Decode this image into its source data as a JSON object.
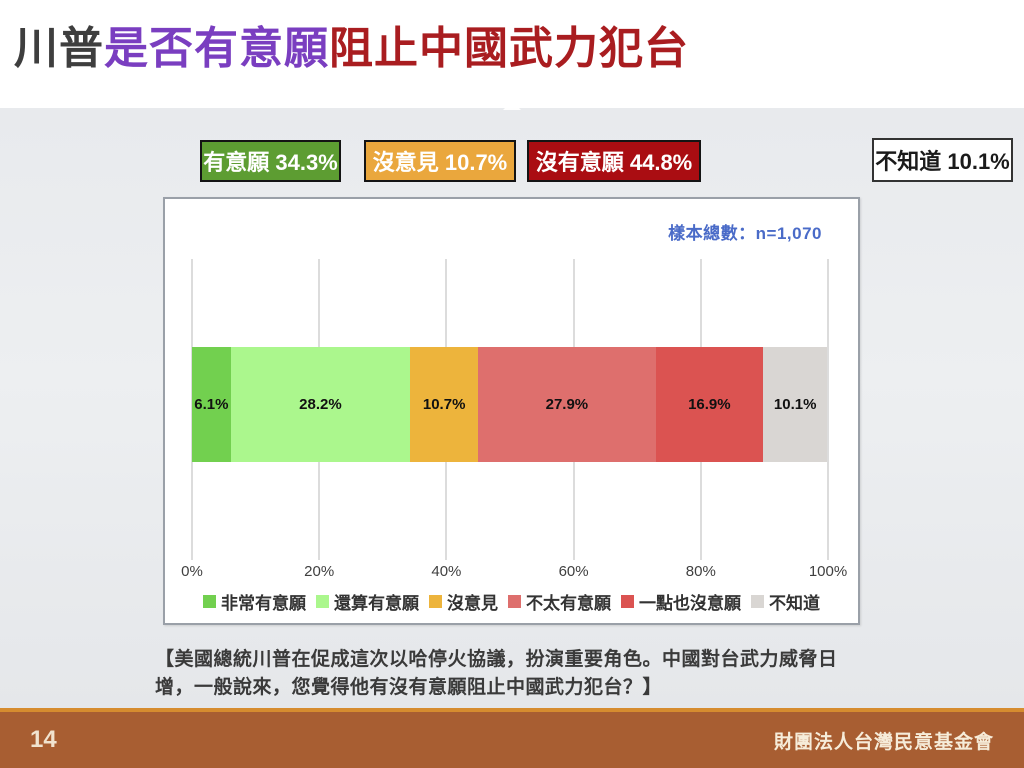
{
  "title": {
    "part1": "川普",
    "part2": "是否有意願",
    "part3": "阻止中國武力犯台"
  },
  "summary_boxes": [
    {
      "label": "有意願 34.3%",
      "bg": "#5d9d32",
      "text_color": "#ffffff"
    },
    {
      "label": "沒意見 10.7%",
      "bg": "#eaa73d",
      "text_color": "#ffffff"
    },
    {
      "label": "沒有意願 44.8%",
      "bg": "#aa0d12",
      "text_color": "#ffffff"
    },
    {
      "label": "不知道 10.1%",
      "bg": "#ffffff",
      "text_color": "#1a1a1a"
    }
  ],
  "chart_data": {
    "type": "bar",
    "orientation": "horizontal-stacked",
    "title": "",
    "sample_note": "樣本總數：n=1,070",
    "categories": [
      "非常有意願",
      "還算有意願",
      "沒意見",
      "不太有意願",
      "一點也沒意願",
      "不知道"
    ],
    "values": [
      6.1,
      28.2,
      10.7,
      27.9,
      16.9,
      10.1
    ],
    "labels": [
      "6.1%",
      "28.2%",
      "10.7%",
      "27.9%",
      "16.9%",
      "10.1%"
    ],
    "colors": [
      "#72d04f",
      "#abf78d",
      "#edb43c",
      "#de6f6d",
      "#db5351",
      "#d9d6d3"
    ],
    "x_ticks": [
      "0%",
      "20%",
      "40%",
      "60%",
      "80%",
      "100%"
    ],
    "xlim": [
      0,
      100
    ],
    "grid": true,
    "legend_position": "bottom"
  },
  "question": "【美國總統川普在促成這次以哈停火協議，扮演重要角色。中國對台武力威脅日增，一般說來，您覺得他有沒有意願阻止中國武力犯台？】",
  "footer": {
    "page_number": "14",
    "organization": "財團法人台灣民意基金會"
  }
}
